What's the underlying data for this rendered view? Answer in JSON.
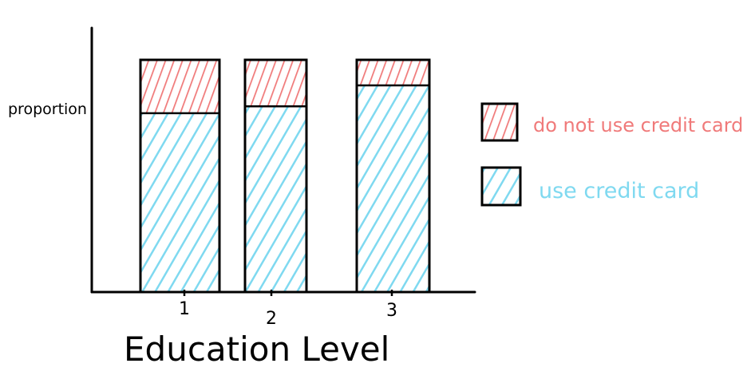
{
  "chart_data": {
    "type": "bar",
    "stacked": true,
    "normalized": true,
    "categories": [
      "1",
      "2",
      "3"
    ],
    "series": [
      {
        "name": "use credit card",
        "values": [
          0.77,
          0.8,
          0.89
        ]
      },
      {
        "name": "do not use credit card",
        "values": [
          0.23,
          0.2,
          0.11
        ]
      }
    ],
    "xlabel": "Education Level",
    "ylabel": "proportion",
    "ylim": [
      0,
      1
    ],
    "grid": false,
    "legend_position": "right",
    "colors": {
      "use credit card": "#7fd9f0",
      "do not use credit card": "#f07a7a",
      "ink": "#000000"
    }
  }
}
